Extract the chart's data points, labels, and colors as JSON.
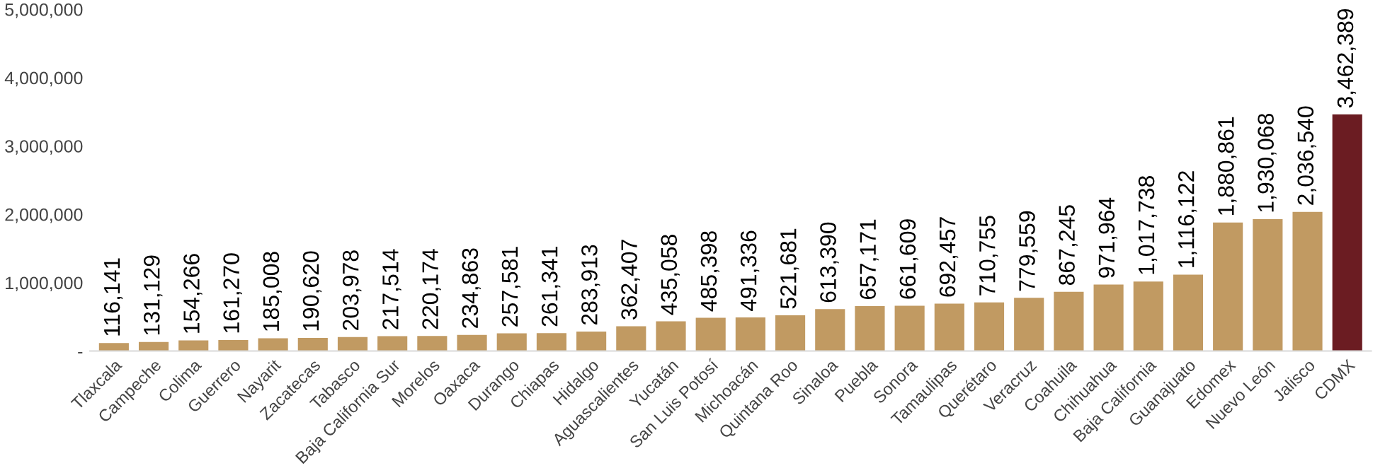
{
  "chart_data": {
    "type": "bar",
    "categories": [
      "Tlaxcala",
      "Campeche",
      "Colima",
      "Guerrero",
      "Nayarit",
      "Zacatecas",
      "Tabasco",
      "Baja California Sur",
      "Morelos",
      "Oaxaca",
      "Durango",
      "Chiapas",
      "Hidalgo",
      "Aguascalientes",
      "Yucatán",
      "San Luis Potosí",
      "Michoacán",
      "Quintana Roo",
      "Sinaloa",
      "Puebla",
      "Sonora",
      "Tamaulipas",
      "Querétaro",
      "Veracruz",
      "Coahuila",
      "Chihuahua",
      "Baja California",
      "Guanajuato",
      "Edomex",
      "Nuevo León",
      "Jalisco",
      "CDMX"
    ],
    "values": [
      116141,
      131129,
      154266,
      161270,
      185008,
      190620,
      203978,
      217514,
      220174,
      234863,
      257581,
      261341,
      283913,
      362407,
      435058,
      485398,
      491336,
      521681,
      613390,
      657171,
      661609,
      692457,
      710755,
      779559,
      867245,
      971964,
      1017738,
      1116122,
      1880861,
      1930068,
      2036540,
      3462389
    ],
    "colors": [
      "#c19a62",
      "#c19a62",
      "#c19a62",
      "#c19a62",
      "#c19a62",
      "#c19a62",
      "#c19a62",
      "#c19a62",
      "#c19a62",
      "#c19a62",
      "#c19a62",
      "#c19a62",
      "#c19a62",
      "#c19a62",
      "#c19a62",
      "#c19a62",
      "#c19a62",
      "#c19a62",
      "#c19a62",
      "#c19a62",
      "#c19a62",
      "#c19a62",
      "#c19a62",
      "#c19a62",
      "#c19a62",
      "#c19a62",
      "#c19a62",
      "#c19a62",
      "#c19a62",
      "#c19a62",
      "#c19a62",
      "#6b1c22"
    ],
    "ylim": [
      0,
      5000000
    ],
    "yticks": [
      {
        "value": 0,
        "label": "-"
      },
      {
        "value": 1000000,
        "label": "1,000,000"
      },
      {
        "value": 2000000,
        "label": "2,000,000"
      },
      {
        "value": 3000000,
        "label": "3,000,000"
      },
      {
        "value": 4000000,
        "label": "4,000,000"
      },
      {
        "value": 5000000,
        "label": "5,000,000"
      }
    ],
    "value_labels": [
      "116,141",
      "131,129",
      "154,266",
      "161,270",
      "185,008",
      "190,620",
      "203,978",
      "217,514",
      "220,174",
      "234,863",
      "257,581",
      "261,341",
      "283,913",
      "362,407",
      "435,058",
      "485,398",
      "491,336",
      "521,681",
      "613,390",
      "657,171",
      "661,609",
      "692,457",
      "710,755",
      "779,559",
      "867,245",
      "971,964",
      "1,017,738",
      "1,116,122",
      "1,880,861",
      "1,930,068",
      "2,036,540",
      "3,462,389"
    ],
    "grid": false,
    "legend": false
  }
}
